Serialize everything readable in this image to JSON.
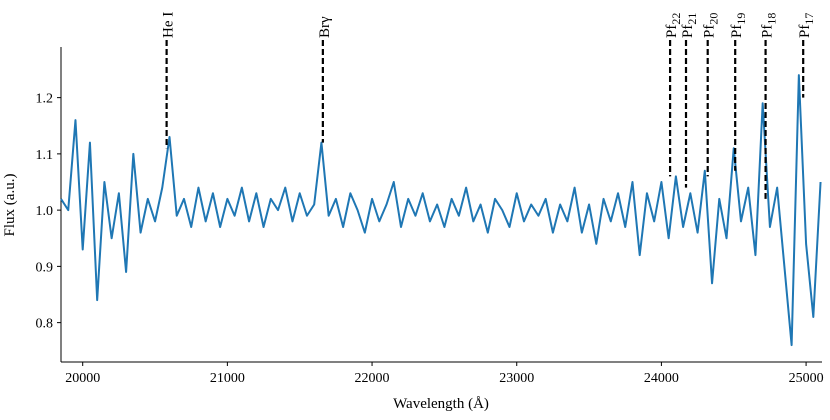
{
  "chart_data": {
    "type": "line",
    "xlabel": "Wavelength (Å)",
    "ylabel": "Flux (a.u.)",
    "xlim": [
      19850,
      25110
    ],
    "ylim": [
      0.73,
      1.29
    ],
    "xticks": [
      20000,
      21000,
      22000,
      23000,
      24000,
      25000
    ],
    "yticks": [
      0.8,
      0.9,
      {
        "value": 1,
        "label": "1.0"
      },
      1.1,
      1.2
    ],
    "grid": false,
    "x": [
      19850,
      19900,
      19950,
      20000,
      20050,
      20100,
      20150,
      20200,
      20250,
      20300,
      20350,
      20400,
      20450,
      20500,
      20550,
      20600,
      20650,
      20700,
      20750,
      20800,
      20850,
      20900,
      20950,
      21000,
      21050,
      21100,
      21150,
      21200,
      21250,
      21300,
      21350,
      21400,
      21450,
      21500,
      21550,
      21600,
      21650,
      21700,
      21750,
      21800,
      21850,
      21900,
      21950,
      22000,
      22050,
      22100,
      22150,
      22200,
      22250,
      22300,
      22350,
      22400,
      22450,
      22500,
      22550,
      22600,
      22650,
      22700,
      22750,
      22800,
      22850,
      22900,
      22950,
      23000,
      23050,
      23100,
      23150,
      23200,
      23250,
      23300,
      23350,
      23400,
      23450,
      23500,
      23550,
      23600,
      23650,
      23700,
      23750,
      23800,
      23850,
      23900,
      23950,
      24000,
      24050,
      24100,
      24150,
      24200,
      24250,
      24300,
      24350,
      24400,
      24450,
      24500,
      24550,
      24600,
      24650,
      24700,
      24750,
      24800,
      24850,
      24900,
      24950,
      25000,
      25050,
      25100
    ],
    "series": [
      {
        "color": "#1f77b4",
        "values": [
          1.02,
          1.0,
          1.16,
          0.93,
          1.12,
          0.84,
          1.05,
          0.95,
          1.03,
          0.89,
          1.1,
          0.96,
          1.02,
          0.98,
          1.04,
          1.13,
          0.99,
          1.02,
          0.97,
          1.04,
          0.98,
          1.03,
          0.97,
          1.02,
          0.99,
          1.04,
          0.98,
          1.03,
          0.97,
          1.02,
          1.0,
          1.04,
          0.98,
          1.03,
          0.99,
          1.01,
          1.12,
          0.99,
          1.02,
          0.97,
          1.03,
          1.0,
          0.96,
          1.02,
          0.98,
          1.01,
          1.05,
          0.97,
          1.02,
          0.99,
          1.03,
          0.98,
          1.01,
          0.97,
          1.02,
          0.99,
          1.04,
          0.98,
          1.01,
          0.96,
          1.02,
          1.0,
          0.97,
          1.03,
          0.98,
          1.01,
          0.99,
          1.02,
          0.96,
          1.01,
          0.98,
          1.04,
          0.96,
          1.01,
          0.94,
          1.02,
          0.98,
          1.03,
          0.97,
          1.05,
          0.92,
          1.03,
          0.98,
          1.05,
          0.95,
          1.06,
          0.97,
          1.03,
          0.96,
          1.07,
          0.87,
          1.02,
          0.95,
          1.11,
          0.98,
          1.04,
          0.92,
          1.19,
          0.97,
          1.04,
          0.9,
          0.76,
          1.24,
          0.94,
          0.81,
          1.05
        ]
      }
    ],
    "annotations": [
      {
        "label": "He I",
        "x": 20580,
        "y": 1.11
      },
      {
        "label": "Brγ",
        "x": 21660,
        "y": 1.12
      },
      {
        "label": "Pf",
        "sub": "22",
        "x": 24060,
        "y": 1.06
      },
      {
        "label": "Pf",
        "sub": "21",
        "x": 24170,
        "y": 1.04
      },
      {
        "label": "Pf",
        "sub": "20",
        "x": 24320,
        "y": 1.06
      },
      {
        "label": "Pf",
        "sub": "19",
        "x": 24510,
        "y": 1.07
      },
      {
        "label": "Pf",
        "sub": "18",
        "x": 24720,
        "y": 1.02
      },
      {
        "label": "Pf",
        "sub": "17",
        "x": 24980,
        "y": 1.2
      }
    ]
  }
}
